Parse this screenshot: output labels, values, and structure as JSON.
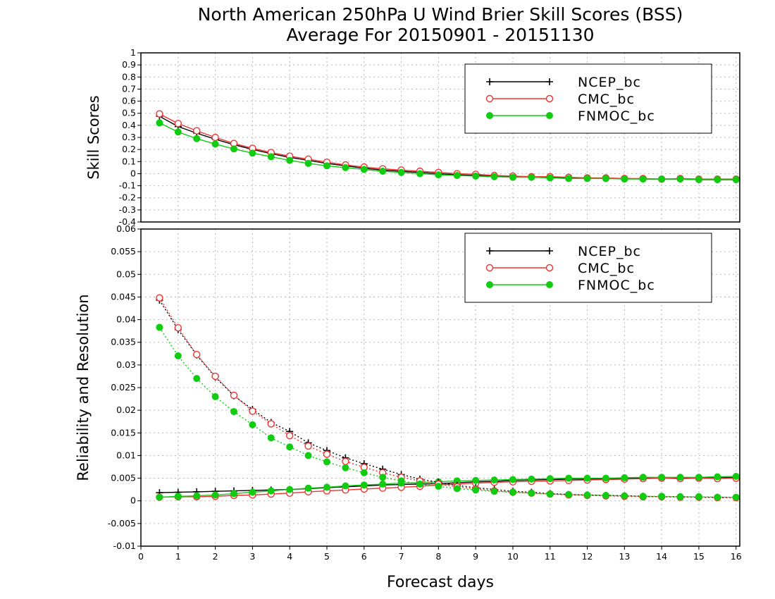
{
  "title_line1": "North American 250hPa U Wind Brier Skill Scores (BSS)",
  "title_line2": "Average For 20150901 - 20151130",
  "chart_data": [
    {
      "type": "line",
      "ylabel": "Skill Scores",
      "xlabel": "",
      "xlim": [
        0,
        16.1
      ],
      "ylim": [
        -0.4,
        1
      ],
      "grid": true,
      "legend_position": "top-right",
      "x_ticks": [
        "0",
        "1",
        "2",
        "3",
        "4",
        "5",
        "6",
        "7",
        "8",
        "9",
        "10",
        "11",
        "12",
        "13",
        "14",
        "15",
        "16"
      ],
      "y_ticks": [
        "-0.4",
        "-0.3",
        "-0.2",
        "-0.1",
        "0",
        "0.1",
        "0.2",
        "0.3",
        "0.4",
        "0.5",
        "0.6",
        "0.7",
        "0.8",
        "0.9",
        "1"
      ],
      "x": [
        0.5,
        1,
        1.5,
        2,
        2.5,
        3,
        3.5,
        4,
        4.5,
        5,
        5.5,
        6,
        6.5,
        7,
        7.5,
        8,
        8.5,
        9,
        9.5,
        10,
        10.5,
        11,
        11.5,
        12,
        12.5,
        13,
        13.5,
        14,
        14.5,
        15,
        15.5,
        16
      ],
      "series": [
        {
          "name": "NCEP_bc",
          "color": "#000000",
          "marker": "plus",
          "style": "solid",
          "values": [
            0.475,
            0.39,
            0.335,
            0.285,
            0.24,
            0.2,
            0.165,
            0.135,
            0.11,
            0.085,
            0.065,
            0.045,
            0.03,
            0.02,
            0.01,
            0.0,
            -0.01,
            -0.015,
            -0.02,
            -0.025,
            -0.03,
            -0.03,
            -0.035,
            -0.035,
            -0.04,
            -0.04,
            -0.045,
            -0.045,
            -0.045,
            -0.05,
            -0.05,
            -0.05
          ]
        },
        {
          "name": "CMC_bc",
          "color": "#ee3333",
          "marker": "open-circle",
          "style": "solid",
          "values": [
            0.495,
            0.415,
            0.355,
            0.3,
            0.25,
            0.21,
            0.175,
            0.145,
            0.12,
            0.095,
            0.072,
            0.055,
            0.04,
            0.03,
            0.02,
            0.01,
            0.0,
            -0.005,
            -0.015,
            -0.02,
            -0.025,
            -0.025,
            -0.03,
            -0.035,
            -0.035,
            -0.04,
            -0.04,
            -0.045,
            -0.04,
            -0.045,
            -0.045,
            -0.045
          ]
        },
        {
          "name": "FNMOC_bc",
          "color": "#11cc11",
          "marker": "filled-circle",
          "style": "solid",
          "values": [
            0.42,
            0.345,
            0.29,
            0.245,
            0.205,
            0.17,
            0.14,
            0.11,
            0.085,
            0.065,
            0.05,
            0.035,
            0.02,
            0.01,
            0.0,
            -0.01,
            -0.015,
            -0.02,
            -0.025,
            -0.03,
            -0.03,
            -0.035,
            -0.04,
            -0.04,
            -0.04,
            -0.045,
            -0.045,
            -0.045,
            -0.045,
            -0.05,
            -0.05,
            -0.05
          ]
        }
      ]
    },
    {
      "type": "line",
      "ylabel": "Reliability and Resolution",
      "xlabel": "Forecast days",
      "xlim": [
        0,
        16.1
      ],
      "ylim": [
        -0.01,
        0.06
      ],
      "grid": true,
      "legend_position": "top-right",
      "x_ticks": [
        "0",
        "1",
        "2",
        "3",
        "4",
        "5",
        "6",
        "7",
        "8",
        "9",
        "10",
        "11",
        "12",
        "13",
        "14",
        "15",
        "16"
      ],
      "y_ticks": [
        "-0.01",
        "-0.005",
        "0",
        "0.005",
        "0.01",
        "0.015",
        "0.02",
        "0.025",
        "0.03",
        "0.035",
        "0.04",
        "0.045",
        "0.05",
        "0.055",
        "0.06"
      ],
      "x": [
        0.5,
        1,
        1.5,
        2,
        2.5,
        3,
        3.5,
        4,
        4.5,
        5,
        5.5,
        6,
        6.5,
        7,
        7.5,
        8,
        8.5,
        9,
        9.5,
        10,
        10.5,
        11,
        11.5,
        12,
        12.5,
        13,
        13.5,
        14,
        14.5,
        15,
        15.5,
        16
      ],
      "series": [
        {
          "name": "NCEP_bc",
          "color": "#000000",
          "marker": "plus",
          "style": "solid",
          "values": [
            0.0018,
            0.0019,
            0.002,
            0.0021,
            0.0022,
            0.0023,
            0.0024,
            0.0025,
            0.0027,
            0.0029,
            0.0031,
            0.0033,
            0.0035,
            0.0036,
            0.0037,
            0.0038,
            0.004,
            0.0042,
            0.0043,
            0.0045,
            0.0046,
            0.0047,
            0.0048,
            0.0048,
            0.0049,
            0.005,
            0.005,
            0.0051,
            0.005,
            0.0051,
            0.0052,
            0.0051
          ]
        },
        {
          "name": "CMC_bc",
          "color": "#ee3333",
          "marker": "open-circle",
          "style": "solid",
          "values": [
            0.0008,
            0.0009,
            0.0009,
            0.001,
            0.0012,
            0.0013,
            0.0015,
            0.0017,
            0.002,
            0.0022,
            0.0024,
            0.0026,
            0.0028,
            0.003,
            0.0032,
            0.0035,
            0.0037,
            0.0039,
            0.0041,
            0.0042,
            0.0043,
            0.0044,
            0.0045,
            0.0046,
            0.0047,
            0.0048,
            0.0049,
            0.005,
            0.0049,
            0.005,
            0.0049,
            0.005
          ]
        },
        {
          "name": "FNMOC_bc",
          "color": "#11cc11",
          "marker": "filled-circle",
          "style": "solid",
          "values": [
            0.0008,
            0.001,
            0.0011,
            0.0013,
            0.0016,
            0.0019,
            0.0022,
            0.0025,
            0.0028,
            0.003,
            0.0033,
            0.0035,
            0.0037,
            0.0039,
            0.004,
            0.0042,
            0.0044,
            0.0045,
            0.0046,
            0.0047,
            0.0048,
            0.0049,
            0.005,
            0.005,
            0.005,
            0.0051,
            0.0052,
            0.0052,
            0.0052,
            0.0052,
            0.0053,
            0.0054
          ]
        },
        {
          "name": "NCEP_bc",
          "color": "#000000",
          "marker": "plus",
          "style": "dotted",
          "values": [
            0.0443,
            0.0378,
            0.0322,
            0.0273,
            0.0232,
            0.0202,
            0.0173,
            0.0153,
            0.0128,
            0.0111,
            0.0095,
            0.0082,
            0.007,
            0.0058,
            0.0048,
            0.0041,
            0.0034,
            0.0029,
            0.0025,
            0.0021,
            0.0019,
            0.0016,
            0.0014,
            0.0013,
            0.0012,
            0.0011,
            0.001,
            0.0009,
            0.0009,
            0.0008,
            0.0008,
            0.0007
          ]
        },
        {
          "name": "CMC_bc",
          "color": "#ee3333",
          "marker": "open-circle",
          "style": "dotted",
          "values": [
            0.0448,
            0.0382,
            0.0323,
            0.0275,
            0.0233,
            0.0198,
            0.017,
            0.0144,
            0.0121,
            0.0103,
            0.0087,
            0.0074,
            0.0062,
            0.0052,
            0.0044,
            0.0037,
            0.0031,
            0.0026,
            0.0022,
            0.0019,
            0.0017,
            0.0015,
            0.0013,
            0.0012,
            0.0011,
            0.001,
            0.0009,
            0.0009,
            0.0008,
            0.0008,
            0.0007,
            0.0007
          ]
        },
        {
          "name": "FNMOC_bc",
          "color": "#11cc11",
          "marker": "filled-circle",
          "style": "dotted",
          "values": [
            0.0383,
            0.032,
            0.027,
            0.023,
            0.0197,
            0.0168,
            0.0139,
            0.0119,
            0.01,
            0.0086,
            0.0073,
            0.0062,
            0.0052,
            0.0044,
            0.0037,
            0.0032,
            0.0027,
            0.0024,
            0.0021,
            0.0019,
            0.0017,
            0.0015,
            0.0014,
            0.0013,
            0.0012,
            0.0011,
            0.001,
            0.001,
            0.0009,
            0.0009,
            0.0008,
            0.0008
          ]
        }
      ]
    }
  ]
}
